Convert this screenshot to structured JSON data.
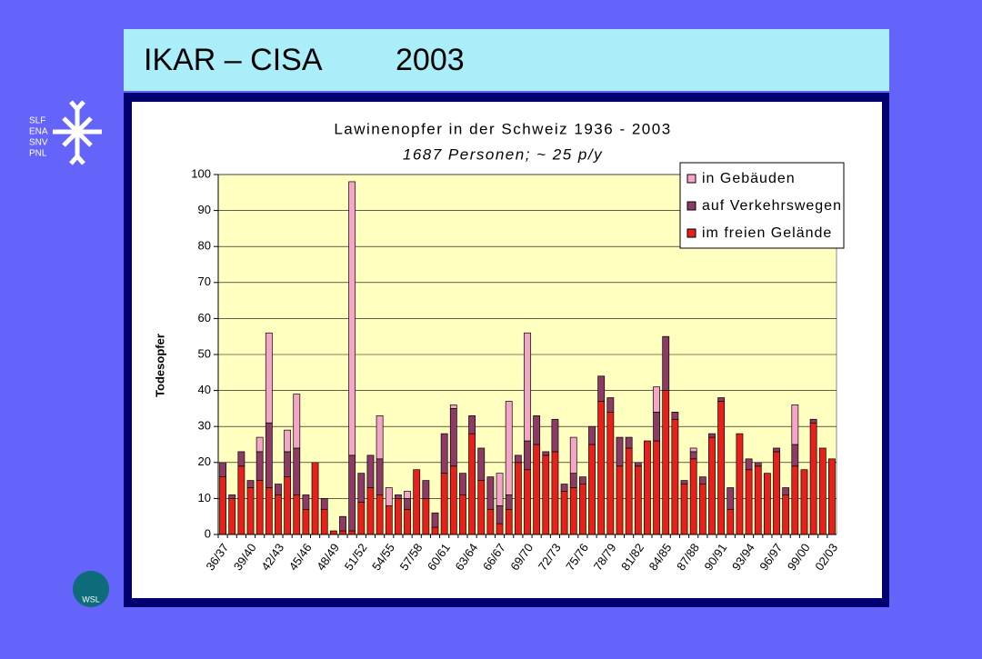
{
  "header": {
    "title": "IKAR – CISA",
    "year": "2003"
  },
  "logo": {
    "lines": [
      "SLF",
      "ENA",
      "SNV",
      "PNL"
    ],
    "wsl": "WSL"
  },
  "chart_data": {
    "type": "stacked_bar",
    "title": "Lawinenopfer in der Schweiz 1936 - 2003",
    "subtitle": "1687 Personen; ~ 25 p/y",
    "y_label": "Todesopfer",
    "categories": [
      "36/37",
      null,
      null,
      "39/40",
      null,
      null,
      "42/43",
      null,
      null,
      "45/46",
      null,
      null,
      "48/49",
      null,
      null,
      "51/52",
      null,
      null,
      "54/55",
      null,
      null,
      "57/58",
      null,
      null,
      "60/61",
      null,
      null,
      "63/64",
      null,
      null,
      "66/67",
      null,
      null,
      "69/70",
      null,
      null,
      "72/73",
      null,
      null,
      "75/76",
      null,
      null,
      "78/79",
      null,
      null,
      "81/82",
      null,
      null,
      "84/85",
      null,
      null,
      "87/88",
      null,
      null,
      "90/91",
      null,
      null,
      "93/94",
      null,
      null,
      "96/97",
      null,
      null,
      "99/00",
      null,
      null,
      "02/03"
    ],
    "series": [
      {
        "name": "im freien Gelände",
        "color": "#e8201c",
        "values": [
          16,
          10,
          19,
          13,
          15,
          13,
          11,
          16,
          11,
          7,
          20,
          7,
          1,
          1,
          1,
          9,
          13,
          11,
          8,
          10,
          7,
          18,
          10,
          2,
          17,
          19,
          11,
          28,
          15,
          7,
          3,
          7,
          20,
          18,
          25,
          22,
          23,
          12,
          13,
          14,
          25,
          37,
          34,
          19,
          24,
          19,
          26,
          26,
          40,
          32,
          14,
          21,
          14,
          27,
          37,
          7,
          28,
          18,
          19,
          17,
          23,
          11,
          19,
          18,
          31,
          24,
          21
        ]
      },
      {
        "name": "auf Verkehrswegen",
        "color": "#8e3a66",
        "values": [
          4,
          1,
          4,
          2,
          8,
          18,
          3,
          7,
          13,
          4,
          0,
          3,
          0,
          4,
          21,
          8,
          9,
          10,
          0,
          1,
          3,
          0,
          5,
          4,
          11,
          16,
          6,
          5,
          9,
          9,
          5,
          4,
          2,
          8,
          8,
          1,
          9,
          2,
          4,
          2,
          5,
          7,
          4,
          8,
          3,
          1,
          0,
          8,
          15,
          2,
          1,
          2,
          2,
          1,
          1,
          6,
          0,
          3,
          1,
          0,
          1,
          2,
          6,
          0,
          1,
          0,
          0
        ]
      },
      {
        "name": "in Gebäuden",
        "color": "#f5a6c8",
        "values": [
          0,
          0,
          0,
          0,
          4,
          25,
          0,
          6,
          15,
          0,
          0,
          0,
          0,
          0,
          76,
          0,
          0,
          12,
          5,
          0,
          2,
          0,
          0,
          0,
          0,
          1,
          0,
          0,
          0,
          0,
          9,
          26,
          0,
          30,
          0,
          0,
          0,
          0,
          10,
          0,
          0,
          0,
          0,
          0,
          0,
          0,
          0,
          7,
          0,
          0,
          0,
          1,
          0,
          0,
          0,
          0,
          0,
          0,
          0,
          0,
          0,
          0,
          11,
          0,
          0,
          0,
          0
        ]
      }
    ],
    "ylim": [
      0,
      100
    ],
    "yticks": [
      0,
      10,
      20,
      30,
      40,
      50,
      60,
      70,
      80,
      90,
      100
    ],
    "legend": "upper right"
  }
}
